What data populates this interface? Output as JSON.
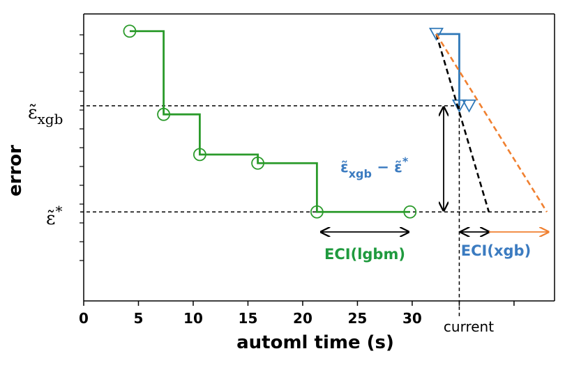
{
  "chart_data": {
    "type": "line",
    "title": "",
    "xlabel": "automl time (s)",
    "ylabel": "error",
    "xlim": [
      0,
      43
    ],
    "ylim": [
      0,
      1
    ],
    "xticks": [
      0,
      5,
      10,
      15,
      20,
      25,
      30
    ],
    "ytick_labels": {
      "eps_xgb": "ε̃",
      "eps_xgb_sub": "xgb",
      "eps_star": "ε̃",
      "eps_star_sup": "*"
    },
    "current_label": "current",
    "series": [
      {
        "name": "lgbm",
        "color": "#2a9a2a",
        "style": "step",
        "marker": "circle",
        "x": [
          4.2,
          7.3,
          10.6,
          15.9,
          21.3,
          29.8
        ],
        "y": [
          0.94,
          0.65,
          0.51,
          0.48,
          0.31,
          0.31
        ]
      },
      {
        "name": "xgb",
        "color": "#2f78b8",
        "style": "step",
        "marker": "triangle-down",
        "x": [
          32.2,
          34.3
        ],
        "y": [
          0.93,
          0.68
        ],
        "extra_markers": [
          {
            "x": 35.2,
            "y": 0.68
          }
        ]
      },
      {
        "name": "xgb-extrapolation-black",
        "color": "#000000",
        "style": "dashed",
        "x": [
          32.2,
          37.0
        ],
        "y": [
          0.93,
          0.31
        ]
      },
      {
        "name": "xgb-extrapolation-orange",
        "color": "#f08030",
        "style": "dashed",
        "x": [
          32.2,
          42.3
        ],
        "y": [
          0.93,
          0.31
        ]
      }
    ],
    "reference_lines": {
      "eps_xgb_y": 0.68,
      "eps_star_y": 0.31,
      "current_x": 34.3
    },
    "annotations": {
      "eci_lgbm": {
        "label": "ECI(lgbm)",
        "x_from": 21.3,
        "x_to": 29.8,
        "y": 0.25
      },
      "eci_xgb": {
        "label": "ECI(xgb)",
        "x_from": 34.3,
        "x_to": 42.3,
        "y": 0.25
      },
      "gap": {
        "label_eps_xgb": "ε̃",
        "label_sub": "xgb",
        "label_minus": " − ε̃",
        "label_star": "*",
        "x": 33.0,
        "y_from": 0.68,
        "y_to": 0.31
      }
    }
  }
}
